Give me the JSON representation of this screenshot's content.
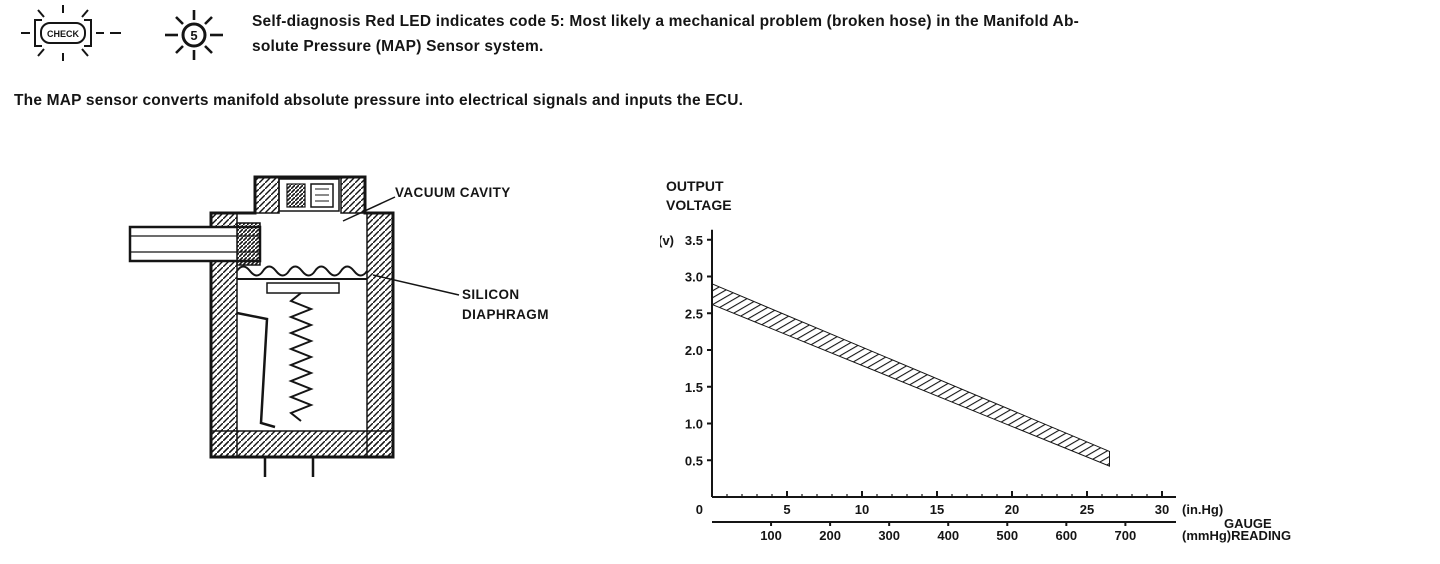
{
  "page": {
    "background": "#ffffff",
    "ink": "#151515"
  },
  "header": {
    "check_lamp_label": "CHECK",
    "led_code": "5",
    "text_line1": "Self-diagnosis Red LED indicates code 5: Most likely a mechanical problem (broken hose) in the Manifold Ab-",
    "text_line2": "solute Pressure (MAP) Sensor system."
  },
  "intro": "The MAP sensor converts manifold absolute pressure into electrical signals and inputs the ECU.",
  "sensor_figure": {
    "labels": {
      "vacuum_cavity": "VACUUM CAVITY",
      "silicon_line1": "SILICON",
      "silicon_line2": "DIAPHRAGM"
    }
  },
  "chart_data": {
    "type": "line",
    "title": "OUTPUT VOLTAGE",
    "title_lines": [
      "OUTPUT",
      "VOLTAGE"
    ],
    "y_unit_label": "(v)",
    "y_ticks": [
      "3.5",
      "3.0",
      "2.5",
      "2.0",
      "1.5",
      "1.0",
      "0.5"
    ],
    "origin_label": "0",
    "ylim_v": [
      0,
      3.5
    ],
    "x_ticks_inhg": [
      "5",
      "10",
      "15",
      "20",
      "25",
      "30"
    ],
    "x_unit_inhg": "(in.Hg)",
    "xlim_inhg": [
      0,
      30
    ],
    "x_ticks_mmhg": [
      "100",
      "200",
      "300",
      "400",
      "500",
      "600",
      "700"
    ],
    "x_unit_mmhg": "(mmHg)",
    "x_axis_label_line1": "GAUGE",
    "x_axis_label_line2": "READING",
    "grid": false,
    "legend": false,
    "band": {
      "style": "hatched",
      "x_inhg": [
        0,
        26.5
      ],
      "y_top_v": [
        2.9,
        0.62
      ],
      "y_bottom_v": [
        2.62,
        0.42
      ]
    }
  }
}
